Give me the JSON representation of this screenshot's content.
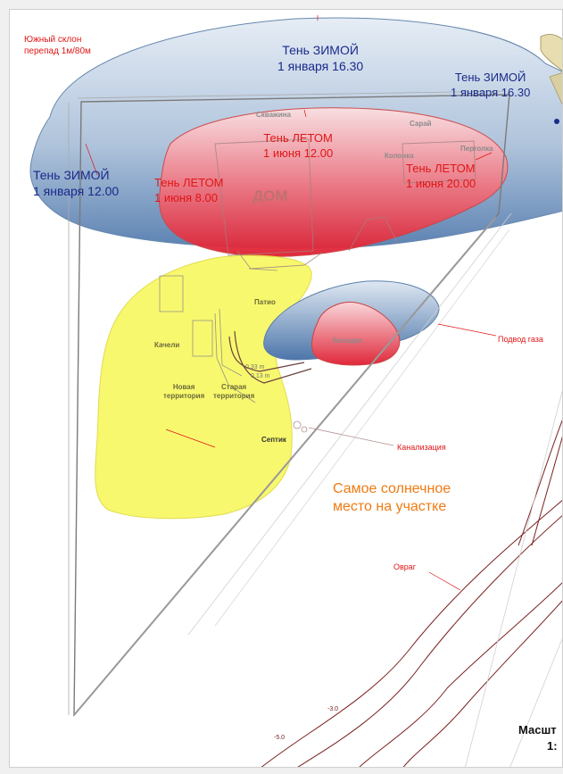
{
  "colors": {
    "winter_shadow": "#5a82b4",
    "summer_shadow": "#e8283a",
    "sunny_zone": "#f8f862",
    "text_navy": "#1a2a8a",
    "text_red": "#e01616",
    "text_orange": "#f07a10"
  },
  "labels": {
    "south_slope_1": "Южный склон",
    "south_slope_2": "перепад 1м/80м",
    "winter_top_1": "Тень ЗИМОЙ",
    "winter_top_2": "1 января 16.30",
    "winter_right_1": "Тень ЗИМОЙ",
    "winter_right_2": "1 января 16.30",
    "winter_left_1": "Тень ЗИМОЙ",
    "winter_left_2": "1 января 12.00",
    "summer_noon_1": "Тень ЛЕТОМ",
    "summer_noon_2": "1 июня 12.00",
    "summer_morning_1": "Тень ЛЕТОМ",
    "summer_morning_2": "1 июня 8.00",
    "summer_evening_1": "Тень ЛЕТОМ",
    "summer_evening_2": "1 июня 20.00",
    "house": "ДОМ",
    "well": "Скважина",
    "shed": "Сарай",
    "column": "Колонка",
    "pergola": "Перголка",
    "patio": "Патио",
    "swing": "Качели",
    "new_territory_1": "Новая",
    "new_territory_2": "территория",
    "old_territory_1": "Старая",
    "old_territory_2": "территория",
    "gazebo": "Беседка",
    "gas_supply": "Подвод газа",
    "septic": "Септик",
    "sewage": "Канализация",
    "sunniest_1": "Самое солнечное",
    "sunniest_2": "место на участке",
    "ravine": "Овраг",
    "meas_1": "0.33 m",
    "meas_2": "0.13 m",
    "contour_1": "-3.0",
    "contour_2": "-5.0",
    "scale_1": "Масшт",
    "scale_2": "1:"
  }
}
